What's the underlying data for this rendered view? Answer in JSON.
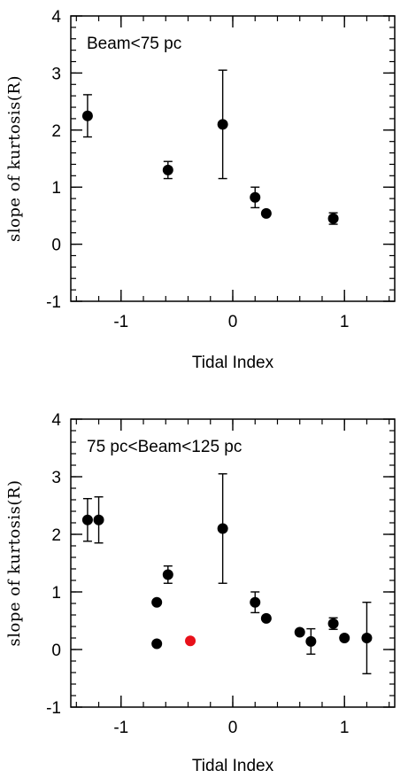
{
  "chart_data": [
    {
      "type": "scatter",
      "annotation": "Beam<75 pc",
      "xlabel": "Tidal Index",
      "ylabel": "slope of kurtosis(R)",
      "xlim": [
        -1.45,
        1.45
      ],
      "ylim": [
        -1,
        4
      ],
      "xticks": [
        "-1",
        "0",
        "1"
      ],
      "yticks": [
        "-1",
        "0",
        "1",
        "2",
        "3",
        "4"
      ],
      "grid": false,
      "points": [
        {
          "x": -1.3,
          "y": 2.25,
          "err": 0.37,
          "color": "#000000"
        },
        {
          "x": -0.58,
          "y": 1.3,
          "err": 0.15,
          "color": "#000000"
        },
        {
          "x": -0.09,
          "y": 2.1,
          "err": 0.95,
          "color": "#000000"
        },
        {
          "x": 0.2,
          "y": 0.82,
          "err": 0.18,
          "color": "#000000"
        },
        {
          "x": 0.3,
          "y": 0.54,
          "err": 0,
          "color": "#000000"
        },
        {
          "x": 0.9,
          "y": 0.45,
          "err": 0.1,
          "color": "#000000"
        }
      ]
    },
    {
      "type": "scatter",
      "annotation": "75 pc<Beam<125 pc",
      "xlabel": "Tidal Index",
      "ylabel": "slope of kurtosis(R)",
      "xlim": [
        -1.45,
        1.45
      ],
      "ylim": [
        -1,
        4
      ],
      "xticks": [
        "-1",
        "0",
        "1"
      ],
      "yticks": [
        "-1",
        "0",
        "1",
        "2",
        "3",
        "4"
      ],
      "grid": false,
      "points": [
        {
          "x": -1.3,
          "y": 2.25,
          "err": 0.37,
          "color": "#000000"
        },
        {
          "x": -1.2,
          "y": 2.25,
          "err": 0.4,
          "color": "#000000"
        },
        {
          "x": -0.68,
          "y": 0.82,
          "err": 0,
          "color": "#000000"
        },
        {
          "x": -0.68,
          "y": 0.1,
          "err": 0,
          "color": "#000000"
        },
        {
          "x": -0.58,
          "y": 1.3,
          "err": 0.15,
          "color": "#000000"
        },
        {
          "x": -0.38,
          "y": 0.15,
          "err": 0,
          "color": "#e8101a"
        },
        {
          "x": -0.09,
          "y": 2.1,
          "err": 0.95,
          "color": "#000000"
        },
        {
          "x": 0.2,
          "y": 0.82,
          "err": 0.18,
          "color": "#000000"
        },
        {
          "x": 0.3,
          "y": 0.54,
          "err": 0,
          "color": "#000000"
        },
        {
          "x": 0.6,
          "y": 0.3,
          "err": 0,
          "color": "#000000"
        },
        {
          "x": 0.7,
          "y": 0.14,
          "err": 0.22,
          "color": "#000000"
        },
        {
          "x": 0.9,
          "y": 0.45,
          "err": 0.1,
          "color": "#000000"
        },
        {
          "x": 1.0,
          "y": 0.2,
          "err": 0,
          "color": "#000000"
        },
        {
          "x": 1.2,
          "y": 0.2,
          "err": 0.62,
          "color": "#000000"
        }
      ]
    }
  ]
}
